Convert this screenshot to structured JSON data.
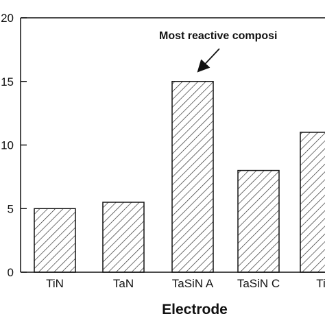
{
  "chart_data": {
    "type": "bar",
    "categories": [
      "TiN",
      "TaN",
      "TaSiN A",
      "TaSiN C",
      "Ti"
    ],
    "values": [
      5,
      5.5,
      15,
      8,
      11
    ],
    "xlabel": "Electrode",
    "ylabel": "",
    "ylim": [
      0,
      20
    ],
    "yticks": [
      "0",
      "5",
      "10",
      "15",
      "20"
    ],
    "yticks_shown": [
      "0",
      "5",
      "10",
      "15",
      "20"
    ],
    "annotation": {
      "text": "Most reactive composi",
      "points_to": "TaSiN A"
    },
    "bar_fill": "hatched",
    "grid": false
  }
}
